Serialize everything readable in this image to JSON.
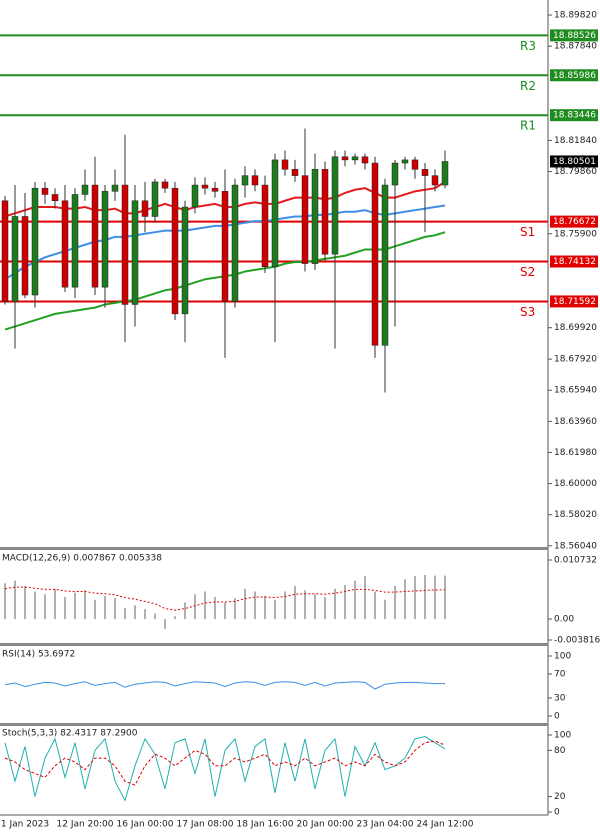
{
  "chart_data": [
    {
      "type": "candlestick",
      "categories": [
        null,
        null,
        "1 Jan 2023",
        null,
        null,
        null,
        null,
        null,
        "12 Jan 20:00",
        null,
        null,
        null,
        null,
        null,
        "16 Jan 00:00",
        null,
        null,
        null,
        null,
        null,
        "17 Jan 08:00",
        null,
        null,
        null,
        null,
        null,
        "18 Jan 16:00",
        null,
        null,
        null,
        null,
        null,
        "20 Jan 00:00",
        null,
        null,
        null,
        null,
        null,
        "23 Jan 04:00",
        null,
        null,
        null,
        null,
        null,
        "24 Jan 12:00"
      ],
      "ohlc": [
        [
          18.78,
          18.783,
          18.714,
          18.716
        ],
        [
          18.716,
          18.79,
          18.686,
          18.77
        ],
        [
          18.77,
          18.785,
          18.718,
          18.72
        ],
        [
          18.72,
          18.792,
          18.712,
          18.788
        ],
        [
          18.788,
          18.792,
          18.778,
          18.784
        ],
        [
          18.784,
          18.788,
          18.775,
          18.78
        ],
        [
          18.78,
          18.79,
          18.722,
          18.725
        ],
        [
          18.725,
          18.788,
          18.718,
          18.784
        ],
        [
          18.784,
          18.8,
          18.78,
          18.79
        ],
        [
          18.79,
          18.808,
          18.72,
          18.725
        ],
        [
          18.725,
          18.79,
          18.712,
          18.786
        ],
        [
          18.786,
          18.8,
          18.78,
          18.79
        ],
        [
          18.79,
          18.822,
          18.69,
          18.714
        ],
        [
          18.714,
          18.79,
          18.7,
          18.78
        ],
        [
          18.78,
          18.792,
          18.76,
          18.77
        ],
        [
          18.77,
          18.794,
          18.766,
          18.792
        ],
        [
          18.792,
          18.794,
          18.785,
          18.788
        ],
        [
          18.788,
          18.792,
          18.704,
          18.708
        ],
        [
          18.708,
          18.78,
          18.69,
          18.776
        ],
        [
          18.776,
          18.795,
          18.772,
          18.79
        ],
        [
          18.79,
          18.795,
          18.784,
          18.788
        ],
        [
          18.788,
          18.792,
          18.782,
          18.786
        ],
        [
          18.786,
          18.8,
          18.68,
          18.716
        ],
        [
          18.716,
          18.794,
          18.712,
          18.79
        ],
        [
          18.79,
          18.802,
          18.782,
          18.796
        ],
        [
          18.796,
          18.8,
          18.786,
          18.79
        ],
        [
          18.79,
          18.796,
          18.734,
          18.738
        ],
        [
          18.738,
          18.81,
          18.69,
          18.806
        ],
        [
          18.806,
          18.812,
          18.796,
          18.8
        ],
        [
          18.8,
          18.806,
          18.792,
          18.796
        ],
        [
          18.796,
          18.826,
          18.735,
          18.74
        ],
        [
          18.74,
          18.81,
          18.736,
          18.8
        ],
        [
          18.8,
          18.805,
          18.742,
          18.746
        ],
        [
          18.746,
          18.812,
          18.686,
          18.808
        ],
        [
          18.808,
          18.812,
          18.802,
          18.806
        ],
        [
          18.806,
          18.81,
          18.803,
          18.808
        ],
        [
          18.808,
          18.81,
          18.8,
          18.804
        ],
        [
          18.804,
          18.808,
          18.68,
          18.688
        ],
        [
          18.688,
          18.794,
          18.658,
          18.79
        ],
        [
          18.79,
          18.806,
          18.7,
          18.804
        ],
        [
          18.804,
          18.808,
          18.8,
          18.806
        ],
        [
          18.806,
          18.808,
          18.794,
          18.8
        ],
        [
          18.8,
          18.804,
          18.76,
          18.796
        ],
        [
          18.796,
          18.8,
          18.786,
          18.79
        ],
        [
          18.79,
          18.812,
          18.788,
          18.805
        ]
      ],
      "up_color": "#1f7a1f",
      "down_color": "#cc0000",
      "series": [
        {
          "color": "#e41a1c",
          "values": [
            18.77,
            18.772,
            18.774,
            18.776,
            18.776,
            18.776,
            18.775,
            18.775,
            18.776,
            18.774,
            18.774,
            18.775,
            18.772,
            18.772,
            18.774,
            18.776,
            18.778,
            18.776,
            18.774,
            18.776,
            18.777,
            18.778,
            18.776,
            18.776,
            18.778,
            18.779,
            18.778,
            18.778,
            18.78,
            18.782,
            18.782,
            18.782,
            18.781,
            18.782,
            18.785,
            18.787,
            18.788,
            18.785,
            18.782,
            18.782,
            18.784,
            18.786,
            18.787,
            18.788,
            18.792
          ]
        },
        {
          "color": "#3d8fe8",
          "values": [
            18.73,
            18.734,
            18.738,
            18.741,
            18.744,
            18.746,
            18.748,
            18.75,
            18.752,
            18.754,
            18.755,
            18.757,
            18.757,
            18.758,
            18.759,
            18.76,
            18.761,
            18.761,
            18.761,
            18.762,
            18.763,
            18.764,
            18.764,
            18.765,
            18.766,
            18.767,
            18.767,
            18.768,
            18.769,
            18.77,
            18.77,
            18.771,
            18.771,
            18.772,
            18.773,
            18.773,
            18.774,
            18.772,
            18.771,
            18.772,
            18.773,
            18.774,
            18.775,
            18.776,
            18.777
          ]
        },
        {
          "color": "#22a022",
          "values": [
            18.698,
            18.7,
            18.702,
            18.704,
            18.706,
            18.708,
            18.709,
            18.71,
            18.711,
            18.712,
            18.714,
            18.715,
            18.716,
            18.717,
            18.719,
            18.721,
            18.723,
            18.724,
            18.726,
            18.728,
            18.73,
            18.731,
            18.732,
            18.733,
            18.735,
            18.736,
            18.737,
            18.738,
            18.74,
            18.741,
            18.741,
            18.742,
            18.743,
            18.744,
            18.745,
            18.747,
            18.749,
            18.749,
            18.749,
            18.751,
            18.753,
            18.755,
            18.757,
            18.758,
            18.76
          ]
        }
      ],
      "levels": [
        {
          "name": "R3",
          "value": 18.88526,
          "color": "#1e8c1e"
        },
        {
          "name": "R2",
          "value": 18.85986,
          "color": "#1e8c1e"
        },
        {
          "name": "R1",
          "value": 18.83446,
          "color": "#1e8c1e"
        },
        {
          "name": "S1",
          "value": 18.76672,
          "color": "#e00000"
        },
        {
          "name": "S2",
          "value": 18.74132,
          "color": "#e00000"
        },
        {
          "name": "S3",
          "value": 18.71592,
          "color": "#e00000"
        }
      ],
      "last_price": 18.80501,
      "ylim": [
        18.559,
        18.9065
      ],
      "yticks": [
        {
          "value": 18.8982,
          "label": "18.89820"
        },
        {
          "value": 18.8784,
          "label": "18.87840"
        },
        {
          "value": 18.8184,
          "label": "18.81840"
        },
        {
          "value": 18.7986,
          "label": "18.79860"
        },
        {
          "value": 18.759,
          "label": "18.75900"
        },
        {
          "value": 18.6992,
          "label": "18.69920"
        },
        {
          "value": 18.6792,
          "label": "18.67920"
        },
        {
          "value": 18.6594,
          "label": "18.65940"
        },
        {
          "value": 18.6396,
          "label": "18.63960"
        },
        {
          "value": 18.6198,
          "label": "18.61980"
        },
        {
          "value": 18.6,
          "label": "18.60000"
        },
        {
          "value": 18.5802,
          "label": "18.58020"
        },
        {
          "value": 18.5604,
          "label": "18.56040"
        }
      ]
    },
    {
      "type": "macd",
      "title": "MACD(12,26,9) 0.007867 0.005338",
      "series": [
        {
          "color": "#b0b0b0",
          "values": [
            0.0065,
            0.007,
            0.006,
            0.005,
            0.0045,
            0.0055,
            0.004,
            0.0048,
            0.0052,
            0.0035,
            0.0042,
            0.0038,
            0.002,
            0.0025,
            0.0018,
            0.001,
            -0.0018,
            0.0005,
            0.003,
            0.0045,
            0.005,
            0.004,
            0.003,
            0.0038,
            0.0055,
            0.005,
            0.0042,
            0.0035,
            0.005,
            0.006,
            0.0052,
            0.0045,
            0.004,
            0.0055,
            0.0062,
            0.007,
            0.0078,
            0.005,
            0.0035,
            0.006,
            0.0072,
            0.0078,
            0.008,
            0.0079,
            0.0079
          ]
        },
        {
          "color": "#e00000",
          "values": [
            0.0055,
            0.0058,
            0.0058,
            0.0056,
            0.0054,
            0.0054,
            0.0051,
            0.005,
            0.005,
            0.0047,
            0.0046,
            0.0044,
            0.0039,
            0.0036,
            0.0032,
            0.0028,
            0.0019,
            0.0016,
            0.0019,
            0.0024,
            0.0029,
            0.0031,
            0.0031,
            0.0032,
            0.0037,
            0.004,
            0.004,
            0.0039,
            0.0041,
            0.0045,
            0.0046,
            0.0046,
            0.0045,
            0.0047,
            0.005,
            0.0054,
            0.0054,
            0.0052,
            0.0049,
            0.0049,
            0.005,
            0.0051,
            0.0052,
            0.0053,
            0.0053
          ]
        }
      ],
      "ylim": [
        -0.003816,
        0.010732
      ],
      "yticks": [
        0.010732,
        {
          "value": 0,
          "label": "0.00"
        },
        -0.003816
      ]
    },
    {
      "type": "line",
      "title": "RSI(14) 53.6972",
      "series": [
        {
          "color": "#3d8fe8",
          "values": [
            52,
            55,
            49,
            53,
            56,
            55,
            50,
            54,
            57,
            51,
            54,
            56,
            48,
            53,
            55,
            57,
            56,
            50,
            54,
            57,
            56,
            55,
            49,
            55,
            57,
            56,
            51,
            56,
            57,
            56,
            51,
            56,
            50,
            55,
            56,
            57,
            56,
            45,
            53,
            55,
            56,
            56,
            55,
            54,
            54
          ]
        }
      ],
      "ylim": [
        0,
        100
      ],
      "yticks": [
        100,
        70,
        30,
        0
      ]
    },
    {
      "type": "line",
      "title": "Stoch(5,3,3) 82.4317 87.2900",
      "series": [
        {
          "color": "#20b0b0",
          "values": [
            90,
            40,
            85,
            20,
            70,
            95,
            45,
            90,
            30,
            80,
            95,
            40,
            15,
            60,
            95,
            75,
            30,
            90,
            95,
            50,
            95,
            20,
            80,
            95,
            40,
            85,
            95,
            25,
            90,
            40,
            95,
            30,
            80,
            95,
            20,
            85,
            60,
            90,
            55,
            60,
            70,
            95,
            98,
            90,
            82
          ]
        },
        {
          "color": "#e00000",
          "dash": true,
          "values": [
            70,
            65,
            55,
            50,
            45,
            60,
            70,
            65,
            55,
            70,
            70,
            60,
            40,
            35,
            60,
            75,
            70,
            60,
            70,
            80,
            75,
            60,
            60,
            70,
            65,
            70,
            75,
            60,
            65,
            60,
            70,
            60,
            65,
            70,
            60,
            65,
            60,
            75,
            65,
            60,
            65,
            80,
            90,
            92,
            87
          ]
        }
      ],
      "ylim": [
        0,
        100
      ],
      "yticks": [
        100,
        80,
        20,
        0
      ]
    }
  ]
}
